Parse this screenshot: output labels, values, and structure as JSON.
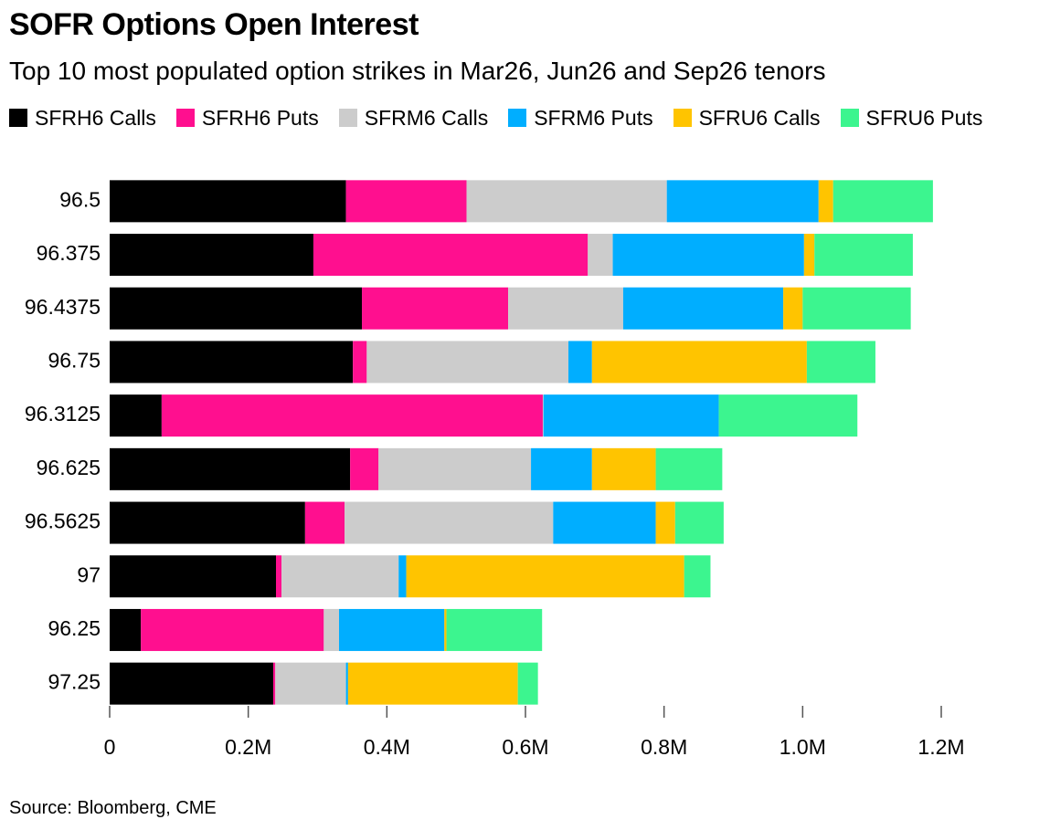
{
  "chart_data": {
    "type": "stacked-bar-horizontal",
    "title": "SOFR Options Open Interest",
    "subtitle": "Top 10 most populated option strikes in Mar26, Jun26 and Sep26 tenors",
    "source": "Source: Bloomberg, CME",
    "categories": [
      "96.5",
      "96.375",
      "96.4375",
      "96.75",
      "96.3125",
      "96.625",
      "96.5625",
      "97",
      "96.25",
      "97.25"
    ],
    "series": [
      {
        "name": "SFRH6 Calls",
        "color": "#000000",
        "values": [
          341000,
          294000,
          364000,
          351000,
          75000,
          347000,
          282000,
          240000,
          45000,
          236000
        ]
      },
      {
        "name": "SFRH6 Puts",
        "color": "#ff0f8f",
        "values": [
          174000,
          396000,
          211000,
          20000,
          550000,
          41000,
          57000,
          8000,
          264000,
          3000
        ]
      },
      {
        "name": "SFRM6 Calls",
        "color": "#cccccc",
        "values": [
          289000,
          36000,
          166000,
          291000,
          1000,
          220000,
          301000,
          169000,
          22000,
          102000
        ]
      },
      {
        "name": "SFRM6 Puts",
        "color": "#00aeff",
        "values": [
          219000,
          276000,
          231000,
          34000,
          253000,
          88000,
          148000,
          11000,
          152000,
          3000
        ]
      },
      {
        "name": "SFRU6 Calls",
        "color": "#ffc400",
        "values": [
          21000,
          15000,
          28000,
          310000,
          0,
          92000,
          28000,
          401000,
          3000,
          245000
        ]
      },
      {
        "name": "SFRU6 Puts",
        "color": "#3cf58f",
        "values": [
          144000,
          142000,
          156000,
          99000,
          200000,
          96000,
          70000,
          38000,
          138000,
          29000
        ]
      }
    ],
    "xlim": [
      0,
      1200000
    ],
    "xticks": [
      0,
      {
        "value": 200000,
        "label": "0.2M"
      },
      {
        "value": 400000,
        "label": "0.4M"
      },
      {
        "value": 600000,
        "label": "0.6M"
      },
      {
        "value": 800000,
        "label": "0.8M"
      },
      {
        "value": 1000000,
        "label": "1.0M"
      },
      {
        "value": 1200000,
        "label": "1.2M"
      }
    ],
    "grid": false
  }
}
